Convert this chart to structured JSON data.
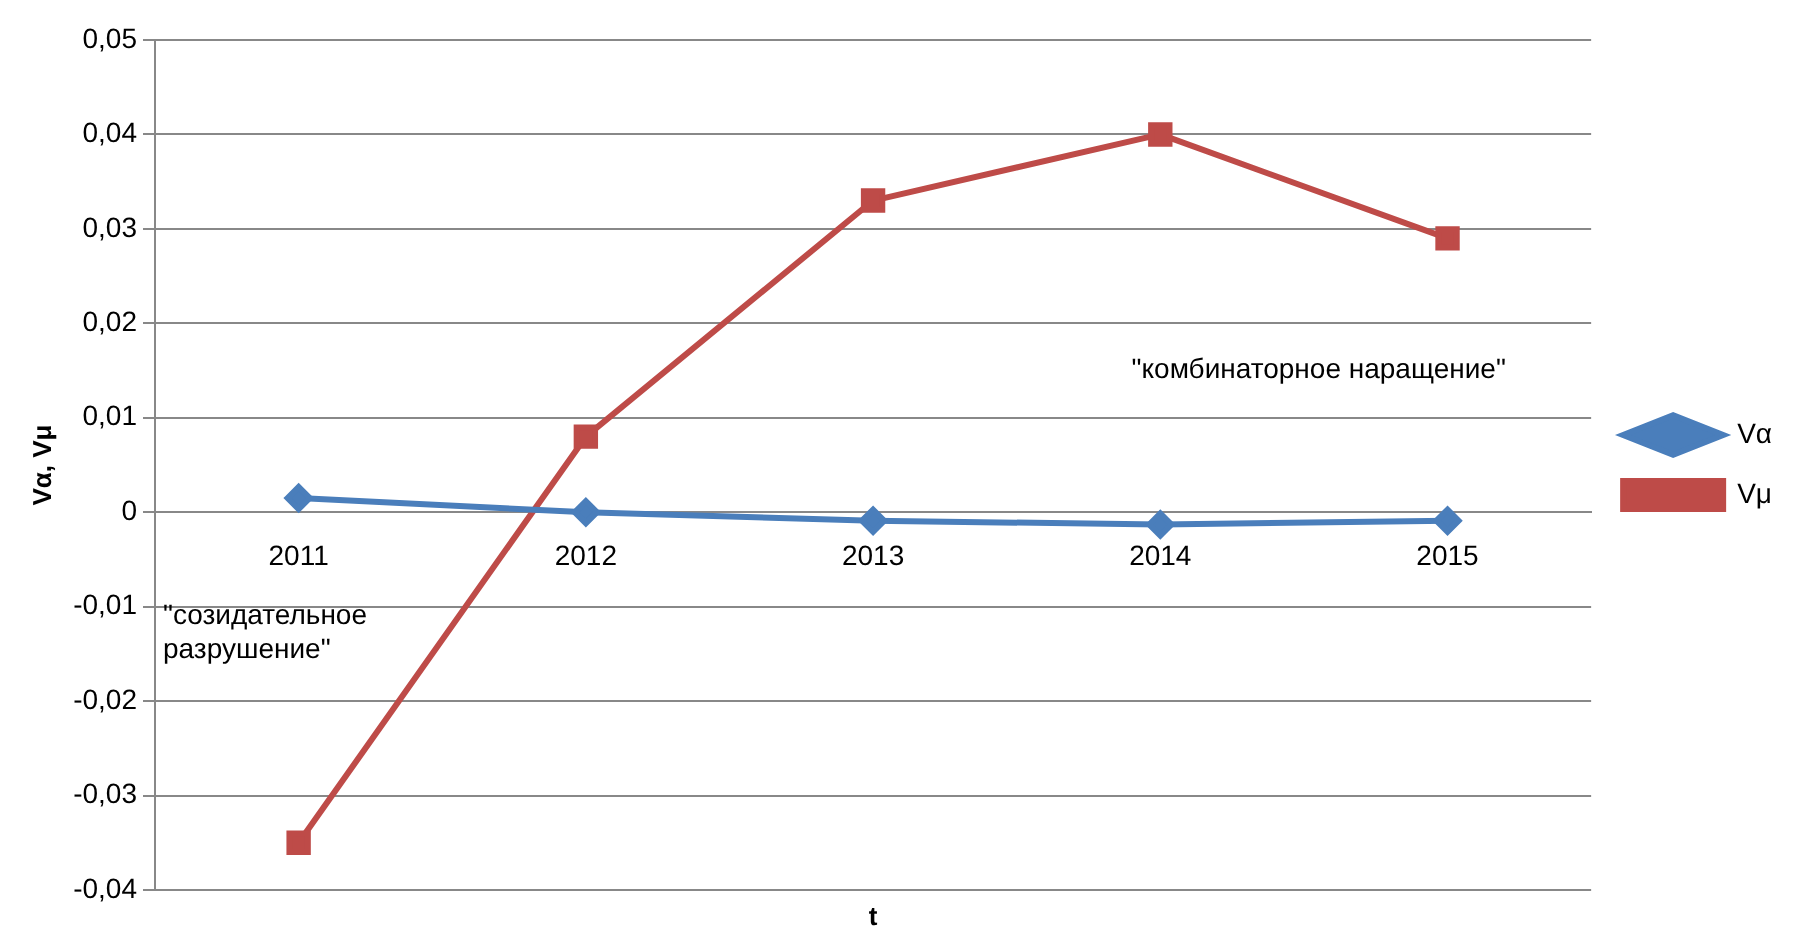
{
  "chart_data": {
    "type": "line",
    "xlabel": "t",
    "ylabel": "Vα, Vμ",
    "categories": [
      "2011",
      "2012",
      "2013",
      "2014",
      "2015"
    ],
    "series": [
      {
        "name": "Vα",
        "color": "#4a7ebb",
        "marker": "diamond",
        "values": [
          0.0015,
          0,
          -0.0009,
          -0.0013,
          -0.0009
        ]
      },
      {
        "name": "Vμ",
        "color": "#be4b48",
        "marker": "square",
        "values": [
          -0.035,
          0.008,
          0.033,
          0.04,
          0.029
        ]
      }
    ],
    "ylim": [
      -0.04,
      0.05
    ],
    "yticks": [
      {
        "value": -0.04,
        "label": "-0,04"
      },
      {
        "value": -0.03,
        "label": "-0,03"
      },
      {
        "value": -0.02,
        "label": "-0,02"
      },
      {
        "value": -0.01,
        "label": "-0,01"
      },
      {
        "value": 0,
        "label": "0"
      },
      {
        "value": 0.01,
        "label": "0,01"
      },
      {
        "value": 0.02,
        "label": "0,02"
      },
      {
        "value": 0.03,
        "label": "0,03"
      },
      {
        "value": 0.04,
        "label": "0,04"
      },
      {
        "value": 0.05,
        "label": "0,05"
      }
    ],
    "grid": "y",
    "legend": "right",
    "line_style": "solid",
    "annotations": [
      "\"комбинаторное наращение\"",
      "\"созидательное\nразрушение\""
    ]
  }
}
